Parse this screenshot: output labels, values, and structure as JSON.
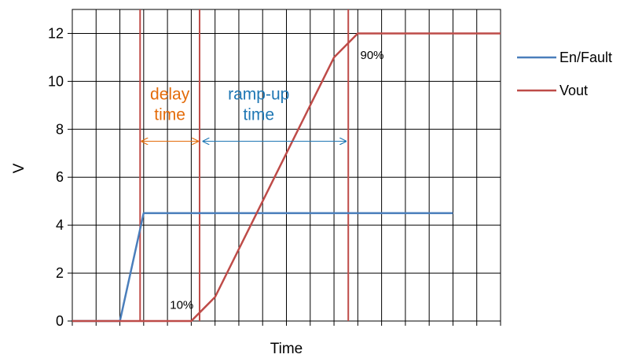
{
  "chart_data": {
    "type": "line",
    "title": "",
    "xlabel": "Time",
    "ylabel": "V",
    "xlim": [
      0,
      18
    ],
    "ylim": [
      0,
      13
    ],
    "yticks": [
      0,
      2,
      4,
      6,
      8,
      10,
      12
    ],
    "x_grid_step": 1,
    "grid": true,
    "legend": "right",
    "series": [
      {
        "name": "En/Fault",
        "color": "#4a7ebb",
        "points": [
          [
            0,
            0
          ],
          [
            2,
            0
          ],
          [
            3,
            4.5
          ],
          [
            16,
            4.5
          ]
        ]
      },
      {
        "name": "Vout",
        "color": "#be4b48",
        "points": [
          [
            0,
            0
          ],
          [
            5,
            0
          ],
          [
            6,
            1
          ],
          [
            11,
            11
          ],
          [
            12,
            12
          ],
          [
            18,
            12
          ]
        ]
      }
    ],
    "markers": [
      {
        "x": 2.85,
        "color": "#be4b48"
      },
      {
        "x": 5.35,
        "color": "#be4b48"
      },
      {
        "x": 11.6,
        "color": "#be4b48"
      }
    ],
    "annotations": {
      "delay_label_line1": "delay",
      "delay_label_line2": "time",
      "delay_color": "#e46c0a",
      "delay_arrow": [
        2.85,
        5.35
      ],
      "rampup_label_line1": "ramp-up",
      "rampup_label_line2": "time",
      "rampup_color": "#1f77b4",
      "rampup_arrow": [
        5.5,
        11.5
      ],
      "pct10": "10%",
      "pct90": "90%"
    }
  }
}
